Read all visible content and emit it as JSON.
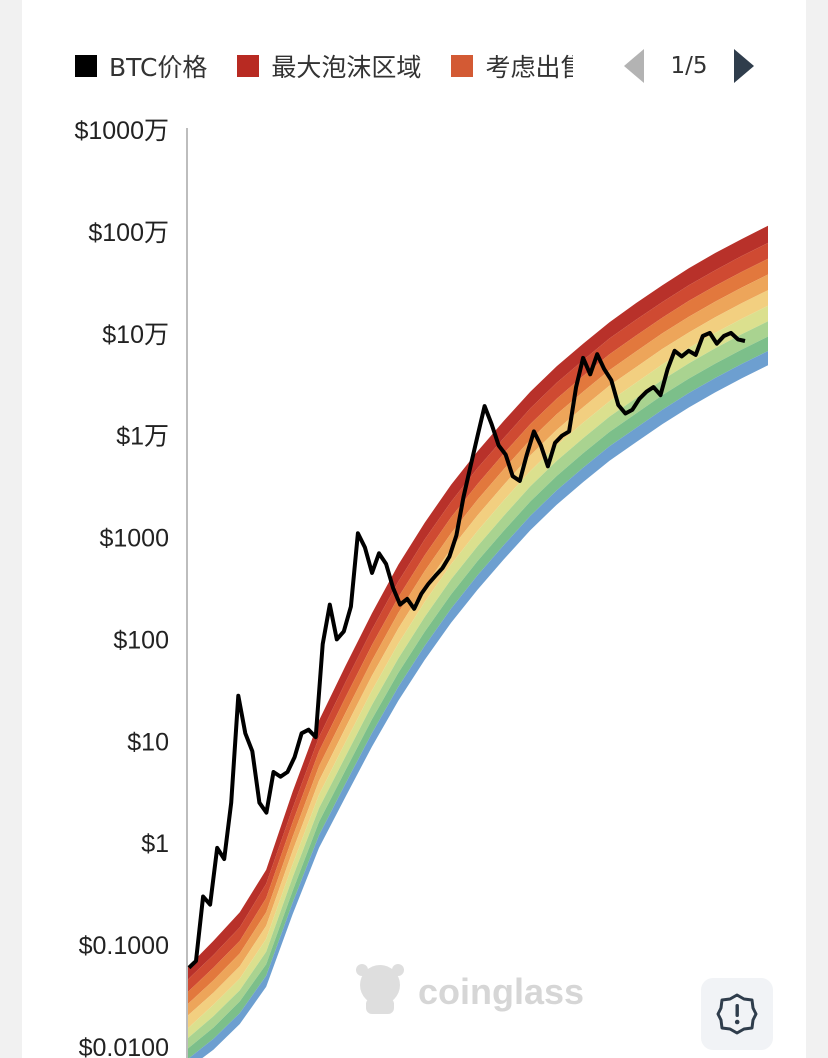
{
  "legend": {
    "items": [
      {
        "label": "BTC价格",
        "color": "#000000"
      },
      {
        "label": "最大泡沫区域",
        "color": "#b82a22"
      },
      {
        "label": "考虑出售",
        "color": "#d35a34"
      }
    ],
    "page_text": "1/5"
  },
  "watermark": "coinglass",
  "settings": {
    "icon": "gear-alert-icon"
  },
  "chart_data": {
    "type": "line",
    "y_scale": "log10",
    "y_ticks": [
      {
        "value": 0.01,
        "label": "$0.0100"
      },
      {
        "value": 0.1,
        "label": "$0.1000"
      },
      {
        "value": 1,
        "label": "$1"
      },
      {
        "value": 10,
        "label": "$10"
      },
      {
        "value": 100,
        "label": "$100"
      },
      {
        "value": 1000,
        "label": "$1000"
      },
      {
        "value": 10000,
        "label": "$1万"
      },
      {
        "value": 100000,
        "label": "$10万"
      },
      {
        "value": 1000000,
        "label": "$100万"
      },
      {
        "value": 10000000,
        "label": "$1000万"
      }
    ],
    "ylim": [
      0.01,
      10000000
    ],
    "band_colors": [
      "#b8312a",
      "#cf4a32",
      "#e2783d",
      "#eda55a",
      "#f2cf80",
      "#dbe08e",
      "#a9d390",
      "#7cbf8a",
      "#6d9fd0"
    ],
    "band_edges": [
      [
        0.06,
        0.11,
        0.21,
        0.55,
        3.2,
        16,
        55,
        180,
        540,
        1400,
        3300,
        7000,
        14000,
        27000,
        48000,
        80000,
        130000,
        200000,
        300000,
        440000,
        620000,
        850000,
        1150000
      ],
      [
        0.045,
        0.08,
        0.15,
        0.4,
        2.2,
        11,
        38,
        125,
        370,
        960,
        2250,
        4800,
        9500,
        18500,
        33000,
        55000,
        90000,
        137000,
        205000,
        300000,
        420000,
        580000,
        780000
      ],
      [
        0.034,
        0.06,
        0.11,
        0.29,
        1.6,
        8,
        27,
        88,
        260,
        670,
        1580,
        3350,
        6700,
        13000,
        23000,
        38500,
        63000,
        96000,
        144000,
        210000,
        295000,
        405000,
        545000
      ],
      [
        0.026,
        0.045,
        0.083,
        0.21,
        1.15,
        5.7,
        19,
        62,
        182,
        470,
        1100,
        2350,
        4700,
        9100,
        16200,
        27000,
        44000,
        67000,
        101000,
        147000,
        207000,
        284000,
        382000
      ],
      [
        0.02,
        0.034,
        0.062,
        0.155,
        0.84,
        4.1,
        13.6,
        44,
        128,
        330,
        775,
        1650,
        3300,
        6400,
        11400,
        19000,
        31000,
        47000,
        71000,
        103000,
        145000,
        199000,
        268000
      ],
      [
        0.015,
        0.026,
        0.047,
        0.115,
        0.62,
        3,
        9.8,
        31.5,
        91,
        233,
        546,
        1160,
        2320,
        4500,
        8000,
        13400,
        21800,
        33000,
        50000,
        72500,
        102000,
        140000,
        188000
      ],
      [
        0.012,
        0.02,
        0.036,
        0.086,
        0.46,
        2.2,
        7.1,
        22.7,
        65,
        166,
        388,
        823,
        1640,
        3180,
        5650,
        9450,
        15400,
        23300,
        35300,
        51200,
        72000,
        98800,
        132500
      ],
      [
        0.0095,
        0.0155,
        0.028,
        0.065,
        0.34,
        1.62,
        5.2,
        16.4,
        47,
        119,
        277,
        587,
        1170,
        2260,
        4020,
        6720,
        10900,
        16500,
        25000,
        36300,
        51000,
        70000,
        94000
      ],
      [
        0.0075,
        0.012,
        0.0215,
        0.05,
        0.26,
        1.2,
        3.85,
        12,
        34.2,
        86.5,
        201,
        425,
        846,
        1630,
        2900,
        4850,
        7870,
        11900,
        18000,
        26200,
        36800,
        50500,
        67800
      ],
      [
        0.006,
        0.0094,
        0.0168,
        0.039,
        0.2,
        0.9,
        2.85,
        8.85,
        25,
        63,
        146,
        308,
        612,
        1180,
        2100,
        3500,
        5680,
        8600,
        13000,
        18900,
        26600,
        36500,
        49000
      ]
    ],
    "series": [
      {
        "name": "BTC价格",
        "color": "#000000",
        "values": [
          0.06,
          0.07,
          0.3,
          0.25,
          0.9,
          0.7,
          2.5,
          28,
          12,
          8,
          2.5,
          2,
          5,
          4.5,
          5,
          7,
          12,
          13,
          11,
          90,
          220,
          100,
          120,
          210,
          1100,
          800,
          450,
          700,
          550,
          320,
          220,
          250,
          200,
          280,
          350,
          420,
          500,
          650,
          1050,
          2500,
          5000,
          10000,
          19500,
          13000,
          8000,
          6500,
          4000,
          3600,
          6500,
          11000,
          8000,
          5000,
          8500,
          10000,
          11000,
          30000,
          58000,
          40000,
          63000,
          45000,
          35000,
          20000,
          16500,
          18000,
          23000,
          27000,
          30000,
          25000,
          45000,
          68000,
          60000,
          68000,
          62000,
          95000,
          102000,
          80000,
          95000,
          102000,
          88000,
          85000
        ]
      }
    ]
  }
}
